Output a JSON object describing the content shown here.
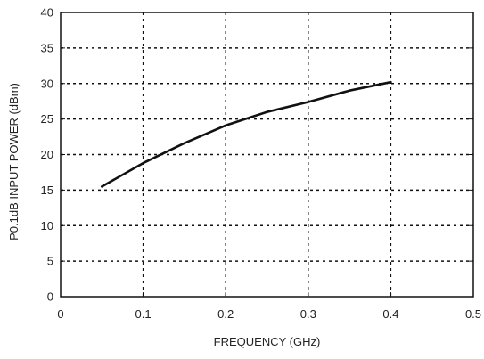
{
  "chart_data": {
    "type": "line",
    "title": "",
    "xlabel": "FREQUENCY (GHz)",
    "ylabel": "P0.1dB INPUT POWER (dBm)",
    "xlim": [
      0,
      0.5
    ],
    "ylim": [
      0,
      40
    ],
    "x_ticks": [
      "0",
      "0.1",
      "0.2",
      "0.3",
      "0.4",
      "0.5"
    ],
    "y_ticks": [
      "0",
      "5",
      "10",
      "15",
      "20",
      "25",
      "30",
      "35",
      "40"
    ],
    "grid": true,
    "grid_style": "dotted",
    "series": [
      {
        "color": "#111111",
        "x": [
          0.05,
          0.1,
          0.15,
          0.2,
          0.25,
          0.3,
          0.35,
          0.4
        ],
        "y": [
          15.5,
          18.8,
          21.6,
          24.1,
          26.0,
          27.4,
          29.0,
          30.2
        ]
      }
    ]
  }
}
